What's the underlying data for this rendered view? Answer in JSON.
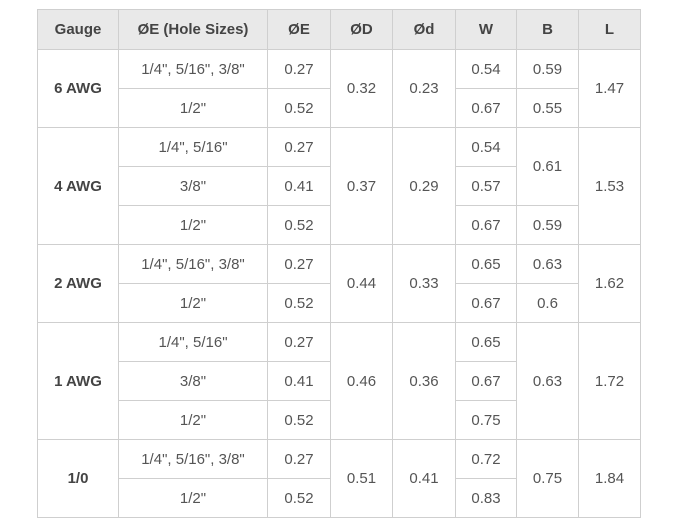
{
  "headers": [
    "Gauge",
    "ØE (Hole Sizes)",
    "ØE",
    "ØD",
    "Ød",
    "W",
    "B",
    "L"
  ],
  "groups": [
    {
      "gauge": "6 AWG",
      "holes": [
        "1/4\", 5/16\", 3/8\"",
        "1/2\""
      ],
      "E": [
        "0.27",
        "0.52"
      ],
      "D": "0.32",
      "d": "0.23",
      "W": [
        "0.54",
        "0.67"
      ],
      "B": [
        {
          "value": "0.59",
          "span": 1
        },
        {
          "value": "0.55",
          "span": 1
        }
      ],
      "L": "1.47"
    },
    {
      "gauge": "4 AWG",
      "holes": [
        "1/4\", 5/16\"",
        "3/8\"",
        "1/2\""
      ],
      "E": [
        "0.27",
        "0.41",
        "0.52"
      ],
      "D": "0.37",
      "d": "0.29",
      "W": [
        "0.54",
        "0.57",
        "0.67"
      ],
      "B": [
        {
          "value": "0.61",
          "span": 2
        },
        {
          "value": "0.59",
          "span": 1
        }
      ],
      "L": "1.53"
    },
    {
      "gauge": "2 AWG",
      "holes": [
        "1/4\", 5/16\", 3/8\"",
        "1/2\""
      ],
      "E": [
        "0.27",
        "0.52"
      ],
      "D": "0.44",
      "d": "0.33",
      "W": [
        "0.65",
        "0.67"
      ],
      "B": [
        {
          "value": "0.63",
          "span": 1
        },
        {
          "value": "0.6",
          "span": 1
        }
      ],
      "L": "1.62"
    },
    {
      "gauge": "1 AWG",
      "holes": [
        "1/4\", 5/16\"",
        "3/8\"",
        "1/2\""
      ],
      "E": [
        "0.27",
        "0.41",
        "0.52"
      ],
      "D": "0.46",
      "d": "0.36",
      "W": [
        "0.65",
        "0.67",
        "0.75"
      ],
      "B": [
        {
          "value": "0.63",
          "span": 3
        }
      ],
      "L": "1.72"
    },
    {
      "gauge": "1/0",
      "holes": [
        "1/4\", 5/16\", 3/8\"",
        "1/2\""
      ],
      "E": [
        "0.27",
        "0.52"
      ],
      "D": "0.51",
      "d": "0.41",
      "W": [
        "0.72",
        "0.83"
      ],
      "B": [
        {
          "value": "0.75",
          "span": 2
        }
      ],
      "L": "1.84"
    }
  ]
}
